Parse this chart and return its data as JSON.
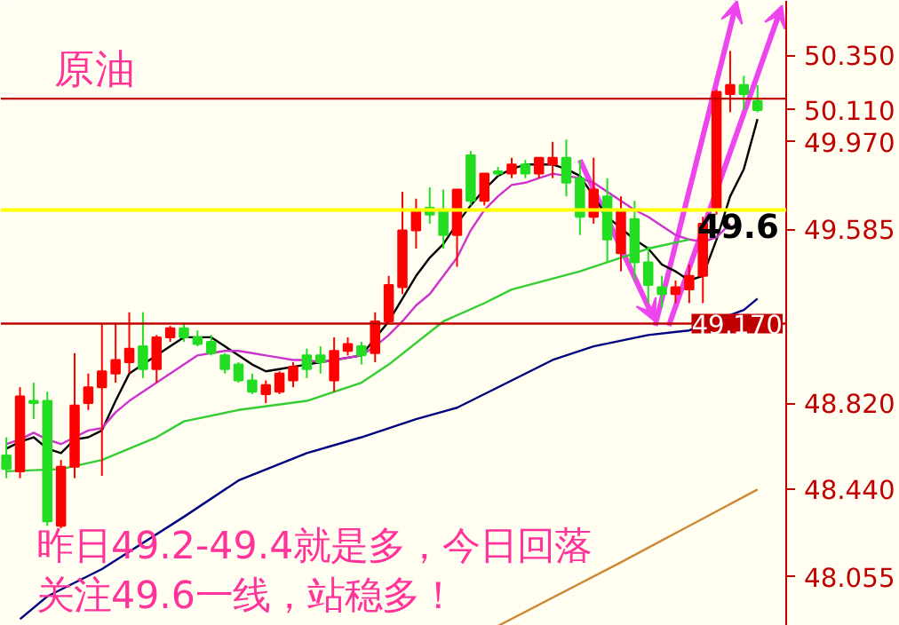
{
  "chart_data": {
    "type": "candlestick",
    "title": "原油",
    "categories": [
      null,
      null,
      null,
      null,
      null,
      null,
      null,
      null,
      null,
      null,
      null,
      null,
      null,
      null,
      null,
      null,
      null,
      null,
      null,
      null,
      null,
      null,
      null,
      null,
      null,
      null,
      null,
      null,
      null,
      null,
      null,
      null,
      null,
      null,
      null,
      null,
      null,
      null,
      null,
      null,
      null,
      null,
      null,
      null,
      null,
      null,
      null,
      null,
      null,
      null,
      null,
      null,
      null,
      null,
      null,
      null
    ],
    "ohlc": [
      [
        48.59,
        48.67,
        48.49,
        48.53
      ],
      [
        48.52,
        48.89,
        48.49,
        48.85
      ],
      [
        48.83,
        48.91,
        48.75,
        48.82
      ],
      [
        48.83,
        48.87,
        48.28,
        48.3
      ],
      [
        48.28,
        48.57,
        48.27,
        48.54
      ],
      [
        48.54,
        49.04,
        48.49,
        48.81
      ],
      [
        48.82,
        48.95,
        48.79,
        48.89
      ],
      [
        48.89,
        49.17,
        48.5,
        48.96
      ],
      [
        48.95,
        49.17,
        48.91,
        49.01
      ],
      [
        49.0,
        49.22,
        48.95,
        49.06
      ],
      [
        49.07,
        49.22,
        48.93,
        48.97
      ],
      [
        48.97,
        49.12,
        48.91,
        49.11
      ],
      [
        49.11,
        49.16,
        49.09,
        49.15
      ],
      [
        49.15,
        49.17,
        49.09,
        49.11
      ],
      [
        49.11,
        49.14,
        49.07,
        49.08
      ],
      [
        49.09,
        49.12,
        49.03,
        49.04
      ],
      [
        49.03,
        49.04,
        48.95,
        48.97
      ],
      [
        48.99,
        49.0,
        48.91,
        48.92
      ],
      [
        48.92,
        48.95,
        48.86,
        48.87
      ],
      [
        48.86,
        48.92,
        48.82,
        48.9
      ],
      [
        48.87,
        48.96,
        48.86,
        48.95
      ],
      [
        48.92,
        49.0,
        48.89,
        48.98
      ],
      [
        49.03,
        49.06,
        48.93,
        48.97
      ],
      [
        49.03,
        49.07,
        48.95,
        49.0
      ],
      [
        48.92,
        49.11,
        48.87,
        49.05
      ],
      [
        49.05,
        49.11,
        49.03,
        49.08
      ],
      [
        49.07,
        49.09,
        48.99,
        49.03
      ],
      [
        49.04,
        49.22,
        49.0,
        49.18
      ],
      [
        49.18,
        49.38,
        49.17,
        49.34
      ],
      [
        49.33,
        49.75,
        49.3,
        49.58
      ],
      [
        49.58,
        49.72,
        49.5,
        49.67
      ],
      [
        49.68,
        49.77,
        49.61,
        49.65
      ],
      [
        49.67,
        49.76,
        49.5,
        49.56
      ],
      [
        49.56,
        49.76,
        49.42,
        49.76
      ],
      [
        49.91,
        49.93,
        49.69,
        49.71
      ],
      [
        49.71,
        49.83,
        49.69,
        49.83
      ],
      [
        49.84,
        49.86,
        49.82,
        49.83
      ],
      [
        49.83,
        49.9,
        49.81,
        49.87
      ],
      [
        49.87,
        49.89,
        49.81,
        49.83
      ],
      [
        49.83,
        49.9,
        49.81,
        49.9
      ],
      [
        49.87,
        49.97,
        49.81,
        49.9
      ],
      [
        49.9,
        49.98,
        49.73,
        49.79
      ],
      [
        49.81,
        49.89,
        49.56,
        49.64
      ],
      [
        49.64,
        49.9,
        49.61,
        49.76
      ],
      [
        49.73,
        49.81,
        49.44,
        49.54
      ],
      [
        49.48,
        49.73,
        49.4,
        49.67
      ],
      [
        49.63,
        49.71,
        49.36,
        49.44
      ],
      [
        49.44,
        49.51,
        49.26,
        49.34
      ],
      [
        49.33,
        49.38,
        49.24,
        49.3
      ],
      [
        49.3,
        49.36,
        49.26,
        49.33
      ],
      [
        49.32,
        49.43,
        49.26,
        49.38
      ],
      [
        49.38,
        49.64,
        49.26,
        49.61
      ],
      [
        49.68,
        50.2,
        49.65,
        50.19
      ],
      [
        50.18,
        50.37,
        50.1,
        50.22
      ],
      [
        50.22,
        50.26,
        50.11,
        50.18
      ],
      [
        50.15,
        50.22,
        50.1,
        50.11
      ]
    ],
    "colors": [
      "#22dd22",
      "#ff0000",
      "#22dd22",
      "#22dd22",
      "#ff0000",
      "#ff0000",
      "#ff0000",
      "#ff0000",
      "#ff0000",
      "#ff0000",
      "#22dd22",
      "#ff0000",
      "#ff0000",
      "#22dd22",
      "#22dd22",
      "#22dd22",
      "#22dd22",
      "#22dd22",
      "#22dd22",
      "#ff0000",
      "#ff0000",
      "#ff0000",
      "#22dd22",
      "#22dd22",
      "#ff0000",
      "#ff0000",
      "#22dd22",
      "#ff0000",
      "#ff0000",
      "#ff0000",
      "#ff0000",
      "#22dd22",
      "#22dd22",
      "#ff0000",
      "#22dd22",
      "#ff0000",
      "#22dd22",
      "#ff0000",
      "#22dd22",
      "#ff0000",
      "#ff0000",
      "#22dd22",
      "#22dd22",
      "#ff0000",
      "#22dd22",
      "#ff0000",
      "#22dd22",
      "#22dd22",
      "#22dd22",
      "#ff0000",
      "#ff0000",
      "#ff0000",
      "#ff0000",
      "#ff0000",
      "#22dd22",
      "#22dd22"
    ],
    "series": [
      {
        "type": "line",
        "color": "#000000",
        "values": [
          48.62,
          48.65,
          48.67,
          48.62,
          48.6,
          48.66,
          48.67,
          48.7,
          48.83,
          48.95,
          48.99,
          49.03,
          49.07,
          49.11,
          49.11,
          49.11,
          49.07,
          49.03,
          48.99,
          48.96,
          48.97,
          48.98,
          48.99,
          49.0,
          null,
          null,
          49.03,
          null,
          49.18,
          49.28,
          49.38,
          49.46,
          49.52,
          49.61,
          49.69,
          49.76,
          49.82,
          49.85,
          49.87,
          49.87,
          49.87,
          49.85,
          49.82,
          49.73,
          49.64,
          49.59,
          49.54,
          49.5,
          49.43,
          49.4,
          49.36,
          49.38,
          49.54,
          49.73,
          49.85,
          50.07
        ]
      },
      {
        "type": "line",
        "color": "#cc33cc",
        "values": [
          48.64,
          48.66,
          48.69,
          48.66,
          48.64,
          48.67,
          48.7,
          48.71,
          48.78,
          48.83,
          48.87,
          48.91,
          48.95,
          48.99,
          49.03,
          49.04,
          49.05,
          49.05,
          49.04,
          49.03,
          49.02,
          49.01,
          49.01,
          49.0,
          49.01,
          49.02,
          49.03,
          49.07,
          49.12,
          49.18,
          49.25,
          49.3,
          49.38,
          49.46,
          49.58,
          49.67,
          49.73,
          49.78,
          49.79,
          49.81,
          49.83,
          49.82,
          49.81,
          49.79,
          49.75,
          49.71,
          49.67,
          49.64,
          49.6,
          49.56,
          49.54,
          49.53,
          49.55,
          49.61,
          null,
          null
        ]
      },
      {
        "type": "line",
        "color": "#33cc33",
        "values": [
          48.52,
          null,
          null,
          null,
          48.53,
          null,
          null,
          48.57,
          null,
          null,
          null,
          48.67,
          null,
          48.74,
          null,
          null,
          null,
          48.79,
          null,
          null,
          null,
          null,
          48.83,
          null,
          null,
          null,
          48.91,
          null,
          48.99,
          null,
          null,
          null,
          49.18,
          null,
          null,
          49.26,
          null,
          49.32,
          null,
          null,
          null,
          null,
          49.4,
          null,
          null,
          null,
          null,
          49.5,
          null,
          null,
          49.54,
          null,
          null,
          null,
          null,
          null
        ]
      },
      {
        "type": "line",
        "color": "#000080",
        "values": [
          null,
          47.87,
          null,
          47.97,
          null,
          null,
          null,
          48.09,
          null,
          null,
          null,
          null,
          null,
          48.32,
          null,
          null,
          null,
          48.48,
          null,
          null,
          null,
          null,
          48.6,
          null,
          null,
          null,
          48.67,
          null,
          null,
          null,
          48.75,
          null,
          null,
          48.8,
          null,
          null,
          48.89,
          null,
          null,
          null,
          49.01,
          null,
          null,
          49.07,
          null,
          null,
          null,
          49.12,
          null,
          null,
          49.14,
          null,
          null,
          null,
          49.23,
          49.28
        ]
      },
      {
        "type": "line",
        "color": "#cc8833",
        "values": [
          null,
          null,
          null,
          null,
          null,
          null,
          null,
          null,
          null,
          null,
          null,
          null,
          null,
          null,
          null,
          null,
          null,
          null,
          null,
          null,
          null,
          null,
          null,
          null,
          null,
          null,
          null,
          null,
          null,
          null,
          null,
          null,
          null,
          null,
          null,
          null,
          47.84,
          null,
          null,
          null,
          null,
          null,
          null,
          null,
          null,
          48.12,
          null,
          null,
          null,
          null,
          null,
          null,
          null,
          null,
          null,
          48.44
        ]
      }
    ],
    "ylim": [
      47.84,
      50.59
    ],
    "yticks": [
      {
        "value": 50.35,
        "label": "50.350"
      },
      {
        "value": 50.11,
        "label": "50.110"
      },
      {
        "value": 49.97,
        "label": "49.970"
      },
      {
        "value": 49.585,
        "label": "49.585"
      },
      {
        "value": 48.82,
        "label": "48.820"
      },
      {
        "value": 48.44,
        "label": "48.440"
      },
      {
        "value": 48.055,
        "label": "48.055"
      }
    ],
    "tick_labels": "y",
    "ref_lines": [
      {
        "axis": "y",
        "value": 50.16,
        "color": "#c00000"
      },
      {
        "axis": "y",
        "value": 49.17,
        "label": "49.170",
        "color": "#c00000"
      },
      {
        "axis": "y",
        "value": 49.67,
        "color": "#ffff00"
      }
    ],
    "annotations": [
      {
        "text": "49.6",
        "y": 49.6
      },
      "昨日49.2-49.4就是多，今日回落",
      "关注49.6一线，站稳多！"
    ]
  }
}
